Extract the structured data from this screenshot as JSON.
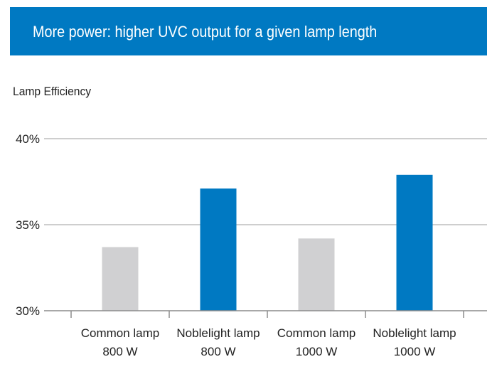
{
  "chart_data": {
    "type": "bar",
    "title": "More power: higher UVC output for a given lamp length",
    "ylabel": "Lamp Efficiency",
    "xlabel": "",
    "categories": [
      [
        "Common lamp",
        "800 W"
      ],
      [
        "Noblelight lamp",
        "800 W"
      ],
      [
        "Common lamp",
        "1000 W"
      ],
      [
        "Noblelight lamp",
        "1000 W"
      ]
    ],
    "values": [
      33.7,
      37.1,
      34.2,
      37.9
    ],
    "bar_colors": [
      "#d0d0d2",
      "#0079c2",
      "#d0d0d2",
      "#0079c2"
    ],
    "ylim": [
      30,
      40
    ],
    "yticks": [
      "30%",
      "35%",
      "40%"
    ],
    "ytick_values": [
      30,
      35,
      40
    ],
    "grid": true,
    "header_color": "#0079c2"
  }
}
